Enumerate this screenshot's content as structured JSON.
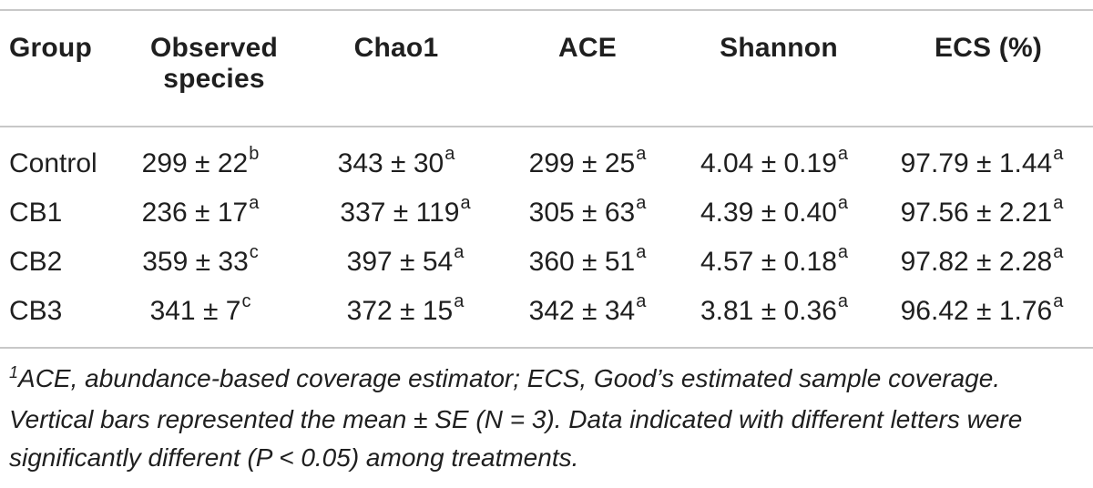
{
  "table": {
    "headers": [
      [
        "Group"
      ],
      [
        "Observed",
        "species"
      ],
      [
        "Chao1"
      ],
      [
        "ACE"
      ],
      [
        "Shannon"
      ],
      [
        "ECS (%)"
      ]
    ],
    "rows": [
      {
        "group": "Control",
        "cells": [
          {
            "v": "299 ± 22",
            "s": "b"
          },
          {
            "v": "343 ± 30",
            "s": "a"
          },
          {
            "v": "299 ± 25",
            "s": "a"
          },
          {
            "v": "4.04 ± 0.19",
            "s": "a"
          },
          {
            "v": "97.79 ± 1.44",
            "s": "a"
          }
        ]
      },
      {
        "group": "CB1",
        "cells": [
          {
            "v": "236 ± 17",
            "s": "a"
          },
          {
            "v": "337 ± 119",
            "s": "a"
          },
          {
            "v": "305 ± 63",
            "s": "a"
          },
          {
            "v": "4.39 ± 0.40",
            "s": "a"
          },
          {
            "v": "97.56 ± 2.21",
            "s": "a"
          }
        ]
      },
      {
        "group": "CB2",
        "cells": [
          {
            "v": "359 ± 33",
            "s": "c"
          },
          {
            "v": "397 ± 54",
            "s": "a"
          },
          {
            "v": "360 ± 51",
            "s": "a"
          },
          {
            "v": "4.57 ± 0.18",
            "s": "a"
          },
          {
            "v": "97.82 ± 2.28",
            "s": "a"
          }
        ]
      },
      {
        "group": "CB3",
        "cells": [
          {
            "v": "341 ± 7",
            "s": "c"
          },
          {
            "v": "372 ± 15",
            "s": "a"
          },
          {
            "v": "342 ± 34",
            "s": "a"
          },
          {
            "v": "3.81 ± 0.36",
            "s": "a"
          },
          {
            "v": "96.42 ± 1.76",
            "s": "a"
          }
        ]
      }
    ]
  },
  "footnote": {
    "mark": "1",
    "text": "ACE, abundance-based coverage estimator; ECS, Good’s estimated sample coverage. Vertical bars represented the mean ± SE (N = 3). Data indicated with different letters were significantly different (P < 0.05) among treatments."
  }
}
